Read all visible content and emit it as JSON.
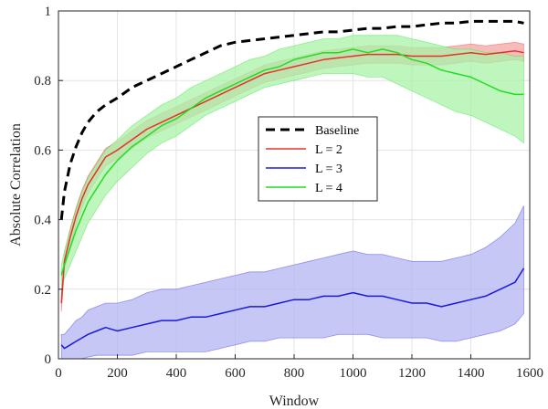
{
  "chart_data": {
    "type": "line",
    "title": "",
    "xlabel": "Window",
    "ylabel": "Absolute Correlation",
    "xlim": [
      0,
      1600
    ],
    "ylim": [
      0,
      1
    ],
    "xticks": [
      0,
      200,
      400,
      600,
      800,
      1000,
      1200,
      1400,
      1600
    ],
    "yticks": [
      0,
      0.2,
      0.4,
      0.6,
      0.8,
      1
    ],
    "ytick_labels": [
      "0",
      "0.2",
      "0.4",
      "0.6",
      "0.8",
      "1"
    ],
    "grid": true,
    "legend_position": "center",
    "series": [
      {
        "name": "Baseline",
        "color": "#000000",
        "style": "dashed",
        "x": [
          10,
          20,
          40,
          60,
          80,
          100,
          130,
          160,
          200,
          250,
          300,
          350,
          400,
          450,
          500,
          550,
          600,
          650,
          700,
          750,
          800,
          850,
          900,
          950,
          1000,
          1050,
          1100,
          1150,
          1200,
          1250,
          1300,
          1350,
          1400,
          1450,
          1500,
          1550,
          1580
        ],
        "y": [
          0.4,
          0.48,
          0.56,
          0.61,
          0.65,
          0.68,
          0.71,
          0.73,
          0.75,
          0.78,
          0.8,
          0.82,
          0.84,
          0.86,
          0.88,
          0.9,
          0.91,
          0.915,
          0.92,
          0.925,
          0.93,
          0.935,
          0.94,
          0.94,
          0.945,
          0.95,
          0.95,
          0.955,
          0.955,
          0.96,
          0.965,
          0.965,
          0.97,
          0.97,
          0.97,
          0.97,
          0.965
        ]
      },
      {
        "name": "L = 2",
        "color": "#e8302a",
        "band_color": "#f4a6a3",
        "x": [
          10,
          20,
          40,
          60,
          80,
          100,
          130,
          160,
          200,
          250,
          300,
          350,
          400,
          450,
          500,
          550,
          600,
          650,
          700,
          750,
          800,
          850,
          900,
          950,
          1000,
          1050,
          1100,
          1150,
          1200,
          1250,
          1300,
          1350,
          1400,
          1450,
          1500,
          1550,
          1580
        ],
        "y": [
          0.16,
          0.28,
          0.35,
          0.41,
          0.46,
          0.5,
          0.54,
          0.58,
          0.6,
          0.63,
          0.66,
          0.68,
          0.7,
          0.72,
          0.74,
          0.76,
          0.78,
          0.8,
          0.82,
          0.83,
          0.84,
          0.85,
          0.86,
          0.865,
          0.87,
          0.875,
          0.875,
          0.875,
          0.87,
          0.87,
          0.87,
          0.875,
          0.88,
          0.875,
          0.88,
          0.885,
          0.88
        ],
        "band": 0.025
      },
      {
        "name": "L = 3",
        "color": "#1a1adc",
        "band_color": "#b4b4f3",
        "x": [
          10,
          20,
          40,
          60,
          80,
          100,
          130,
          160,
          200,
          250,
          300,
          350,
          400,
          450,
          500,
          550,
          600,
          650,
          700,
          750,
          800,
          850,
          900,
          950,
          1000,
          1050,
          1100,
          1150,
          1200,
          1250,
          1300,
          1350,
          1400,
          1450,
          1500,
          1550,
          1580
        ],
        "y": [
          0.04,
          0.03,
          0.04,
          0.05,
          0.06,
          0.07,
          0.08,
          0.09,
          0.08,
          0.09,
          0.1,
          0.11,
          0.11,
          0.12,
          0.12,
          0.13,
          0.14,
          0.15,
          0.15,
          0.16,
          0.17,
          0.17,
          0.18,
          0.18,
          0.19,
          0.18,
          0.18,
          0.17,
          0.16,
          0.16,
          0.15,
          0.16,
          0.17,
          0.18,
          0.2,
          0.22,
          0.26
        ],
        "band_lower": [
          0.0,
          0.0,
          0.0,
          0.0,
          0.0,
          0.005,
          0.01,
          0.01,
          0.01,
          0.01,
          0.02,
          0.02,
          0.02,
          0.02,
          0.02,
          0.03,
          0.04,
          0.05,
          0.05,
          0.06,
          0.06,
          0.06,
          0.06,
          0.07,
          0.07,
          0.07,
          0.06,
          0.06,
          0.06,
          0.06,
          0.05,
          0.05,
          0.06,
          0.07,
          0.08,
          0.1,
          0.13
        ],
        "band_upper": [
          0.07,
          0.07,
          0.09,
          0.11,
          0.12,
          0.14,
          0.15,
          0.16,
          0.16,
          0.17,
          0.19,
          0.2,
          0.2,
          0.21,
          0.22,
          0.23,
          0.24,
          0.25,
          0.25,
          0.26,
          0.27,
          0.28,
          0.29,
          0.3,
          0.31,
          0.3,
          0.3,
          0.29,
          0.28,
          0.28,
          0.28,
          0.29,
          0.3,
          0.32,
          0.35,
          0.39,
          0.44
        ]
      },
      {
        "name": "L = 4",
        "color": "#22dd22",
        "band_color": "#a8f3a8",
        "x": [
          10,
          20,
          40,
          60,
          80,
          100,
          130,
          160,
          200,
          250,
          300,
          350,
          400,
          450,
          500,
          550,
          600,
          650,
          700,
          750,
          800,
          850,
          900,
          950,
          1000,
          1050,
          1100,
          1150,
          1200,
          1250,
          1300,
          1350,
          1400,
          1450,
          1500,
          1550,
          1580
        ],
        "y": [
          0.24,
          0.27,
          0.32,
          0.37,
          0.41,
          0.45,
          0.49,
          0.53,
          0.57,
          0.61,
          0.64,
          0.67,
          0.69,
          0.72,
          0.75,
          0.77,
          0.79,
          0.81,
          0.83,
          0.84,
          0.86,
          0.87,
          0.88,
          0.88,
          0.89,
          0.88,
          0.89,
          0.88,
          0.86,
          0.85,
          0.83,
          0.82,
          0.81,
          0.79,
          0.77,
          0.76,
          0.76
        ],
        "band_lower": [
          0.21,
          0.23,
          0.27,
          0.31,
          0.35,
          0.39,
          0.43,
          0.47,
          0.51,
          0.55,
          0.59,
          0.62,
          0.64,
          0.67,
          0.7,
          0.72,
          0.74,
          0.76,
          0.78,
          0.79,
          0.8,
          0.81,
          0.82,
          0.82,
          0.82,
          0.81,
          0.81,
          0.79,
          0.77,
          0.75,
          0.73,
          0.71,
          0.7,
          0.68,
          0.66,
          0.64,
          0.62
        ],
        "band_upper": [
          0.27,
          0.31,
          0.37,
          0.43,
          0.48,
          0.52,
          0.56,
          0.6,
          0.63,
          0.67,
          0.7,
          0.73,
          0.75,
          0.78,
          0.8,
          0.82,
          0.84,
          0.86,
          0.87,
          0.89,
          0.9,
          0.91,
          0.92,
          0.92,
          0.93,
          0.93,
          0.93,
          0.93,
          0.92,
          0.91,
          0.9,
          0.89,
          0.89,
          0.88,
          0.88,
          0.87,
          0.87
        ]
      }
    ]
  }
}
